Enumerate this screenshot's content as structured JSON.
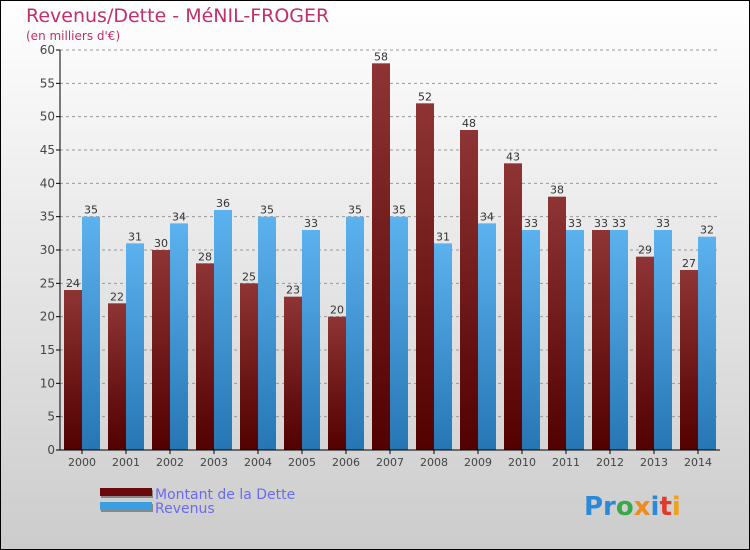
{
  "chart_data": {
    "type": "bar",
    "title": "Revenus/Dette - MéNIL-FROGER",
    "subtitle": "(en milliers d'€)",
    "xlabel": "",
    "ylabel": "",
    "ylim": [
      0,
      60
    ],
    "yticks": [
      0,
      5,
      10,
      15,
      20,
      25,
      30,
      35,
      40,
      45,
      50,
      55,
      60
    ],
    "grid": true,
    "legend_position": "bottom-left",
    "categories": [
      "2000",
      "2001",
      "2002",
      "2003",
      "2004",
      "2005",
      "2006",
      "2007",
      "2008",
      "2009",
      "2010",
      "2011",
      "2012",
      "2013",
      "2014"
    ],
    "series": [
      {
        "name": "Montant de la Dette",
        "color": "#6b0a0a",
        "values": [
          24,
          22,
          30,
          28,
          25,
          23,
          20,
          58,
          52,
          48,
          43,
          38,
          33,
          29,
          27
        ]
      },
      {
        "name": "Revenus",
        "color": "#3a9ee0",
        "values": [
          35,
          31,
          34,
          36,
          35,
          33,
          35,
          35,
          31,
          34,
          33,
          33,
          33,
          33,
          32
        ]
      }
    ]
  },
  "logo": "Proxiti",
  "colors": {
    "title": "#c0306a",
    "legend_text": "#6a6af0"
  }
}
